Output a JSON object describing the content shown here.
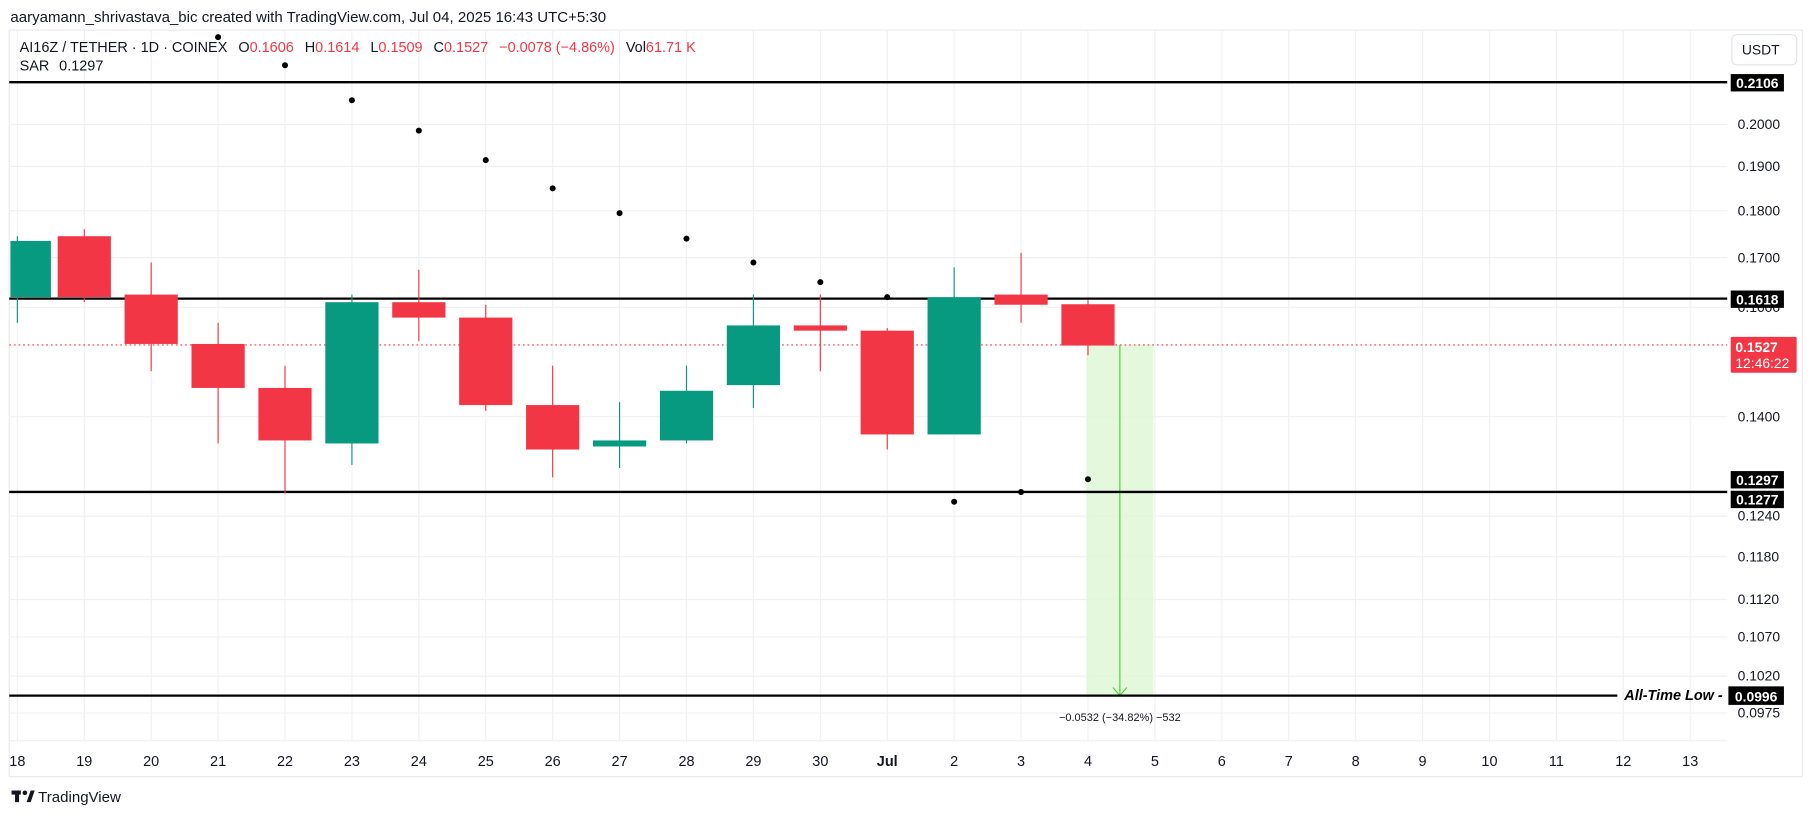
{
  "attribution": "aaryamann_shrivastava_bic created with TradingView.com, Jul 04, 2025 16:43 UTC+5:30",
  "legend": {
    "symbol": "AI16Z / TETHER · 1D · COINEX",
    "open_label": "O",
    "open": "0.1606",
    "high_label": "H",
    "high": "0.1614",
    "low_label": "L",
    "low": "0.1509",
    "close_label": "C",
    "close": "0.1527",
    "change": "−0.0078 (−4.86%)",
    "vol_label": "Vol",
    "vol": "61.71 K",
    "sar_label": "SAR",
    "sar_value": "0.1297"
  },
  "currency_button": "USDT",
  "price_axis": {
    "ticks": [
      "0.2000",
      "0.1900",
      "0.1800",
      "0.1700",
      "0.1600",
      "0.1400",
      "0.1240",
      "0.1180",
      "0.1120",
      "0.1070",
      "0.1020",
      "0.0975"
    ],
    "badges": {
      "resistance_top": "0.2106",
      "resistance_mid": "0.1618",
      "last_price": "0.1527",
      "countdown": "12:46:22",
      "sar": "0.1297",
      "support": "0.1277",
      "all_time_low": "0.0996"
    }
  },
  "time_axis": [
    "18",
    "19",
    "20",
    "21",
    "22",
    "23",
    "24",
    "25",
    "26",
    "27",
    "28",
    "29",
    "30",
    "Jul",
    "2",
    "3",
    "4",
    "5",
    "6",
    "7",
    "8",
    "9",
    "10",
    "11",
    "12",
    "13"
  ],
  "annotations": {
    "all_time_low_label": "All-Time Low -",
    "measure_label": "−0.0532 (−34.82%) −532"
  },
  "footer_logo": "TradingView",
  "colors": {
    "up": "#089981",
    "down": "#f23645",
    "line": "#000000",
    "measure_fill": "#dff7d6",
    "measure_line": "#4cd137"
  },
  "chart_data": {
    "type": "candlestick",
    "title": "AI16Z / TETHER · 1D · COINEX",
    "xlabel": "",
    "ylabel": "USDT",
    "y_scale": "log",
    "ylim": [
      0.095,
      0.22
    ],
    "categories": [
      "Jun 18",
      "Jun 19",
      "Jun 20",
      "Jun 21",
      "Jun 22",
      "Jun 23",
      "Jun 24",
      "Jun 25",
      "Jun 26",
      "Jun 27",
      "Jun 28",
      "Jun 29",
      "Jun 30",
      "Jul 1",
      "Jul 2",
      "Jul 3",
      "Jul 4"
    ],
    "candles": [
      {
        "date": "Jun 18",
        "open": 0.162,
        "high": 0.1745,
        "low": 0.157,
        "close": 0.1735
      },
      {
        "date": "Jun 19",
        "open": 0.1745,
        "high": 0.176,
        "low": 0.161,
        "close": 0.162
      },
      {
        "date": "Jun 20",
        "open": 0.1625,
        "high": 0.169,
        "low": 0.148,
        "close": 0.153
      },
      {
        "date": "Jun 21",
        "open": 0.153,
        "high": 0.157,
        "low": 0.1355,
        "close": 0.145
      },
      {
        "date": "Jun 22",
        "open": 0.145,
        "high": 0.149,
        "low": 0.1275,
        "close": 0.136
      },
      {
        "date": "Jun 23",
        "open": 0.1355,
        "high": 0.1625,
        "low": 0.132,
        "close": 0.161
      },
      {
        "date": "Jun 24",
        "open": 0.161,
        "high": 0.1675,
        "low": 0.1535,
        "close": 0.158
      },
      {
        "date": "Jun 25",
        "open": 0.158,
        "high": 0.1605,
        "low": 0.141,
        "close": 0.142
      },
      {
        "date": "Jun 26",
        "open": 0.142,
        "high": 0.149,
        "low": 0.13,
        "close": 0.1345
      },
      {
        "date": "Jun 27",
        "open": 0.135,
        "high": 0.1425,
        "low": 0.1315,
        "close": 0.136
      },
      {
        "date": "Jun 28",
        "open": 0.136,
        "high": 0.149,
        "low": 0.1355,
        "close": 0.1445
      },
      {
        "date": "Jun 29",
        "open": 0.1455,
        "high": 0.1625,
        "low": 0.1415,
        "close": 0.1565
      },
      {
        "date": "Jun 30",
        "open": 0.1565,
        "high": 0.1625,
        "low": 0.148,
        "close": 0.1555
      },
      {
        "date": "Jul 1",
        "open": 0.1555,
        "high": 0.156,
        "low": 0.1345,
        "close": 0.137
      },
      {
        "date": "Jul 2",
        "open": 0.137,
        "high": 0.168,
        "low": 0.137,
        "close": 0.162
      },
      {
        "date": "Jul 3",
        "open": 0.1625,
        "high": 0.171,
        "low": 0.157,
        "close": 0.1605
      },
      {
        "date": "Jul 4",
        "open": 0.1606,
        "high": 0.1614,
        "low": 0.1509,
        "close": 0.1527
      }
    ],
    "sar": [
      {
        "date": "Jun 21",
        "value": 0.2225
      },
      {
        "date": "Jun 22",
        "value": 0.215
      },
      {
        "date": "Jun 23",
        "value": 0.206
      },
      {
        "date": "Jun 24",
        "value": 0.1985
      },
      {
        "date": "Jun 25",
        "value": 0.1915
      },
      {
        "date": "Jun 26",
        "value": 0.185
      },
      {
        "date": "Jun 27",
        "value": 0.1795
      },
      {
        "date": "Jun 28",
        "value": 0.174
      },
      {
        "date": "Jun 29",
        "value": 0.169
      },
      {
        "date": "Jun 30",
        "value": 0.165
      },
      {
        "date": "Jul 1",
        "value": 0.162
      },
      {
        "date": "Jul 2",
        "value": 0.1262
      },
      {
        "date": "Jul 3",
        "value": 0.1277
      },
      {
        "date": "Jul 4",
        "value": 0.1297
      }
    ],
    "horizontal_lines": [
      {
        "price": 0.2106,
        "label": "0.2106"
      },
      {
        "price": 0.1618,
        "label": "0.1618"
      },
      {
        "price": 0.1277,
        "label": "0.1277"
      },
      {
        "price": 0.0996,
        "label": "All-Time Low",
        "badge": "0.0996"
      }
    ],
    "last_price": 0.1527,
    "measure": {
      "from": 0.1527,
      "to": 0.0996,
      "change": "-0.0532",
      "percent": "-34.82%",
      "ticks": "-532"
    },
    "y_ticks": [
      0.2,
      0.19,
      0.18,
      0.17,
      0.16,
      0.14,
      0.124,
      0.118,
      0.112,
      0.107,
      0.102,
      0.0975
    ],
    "grid": true,
    "legend_position": "top-left"
  }
}
